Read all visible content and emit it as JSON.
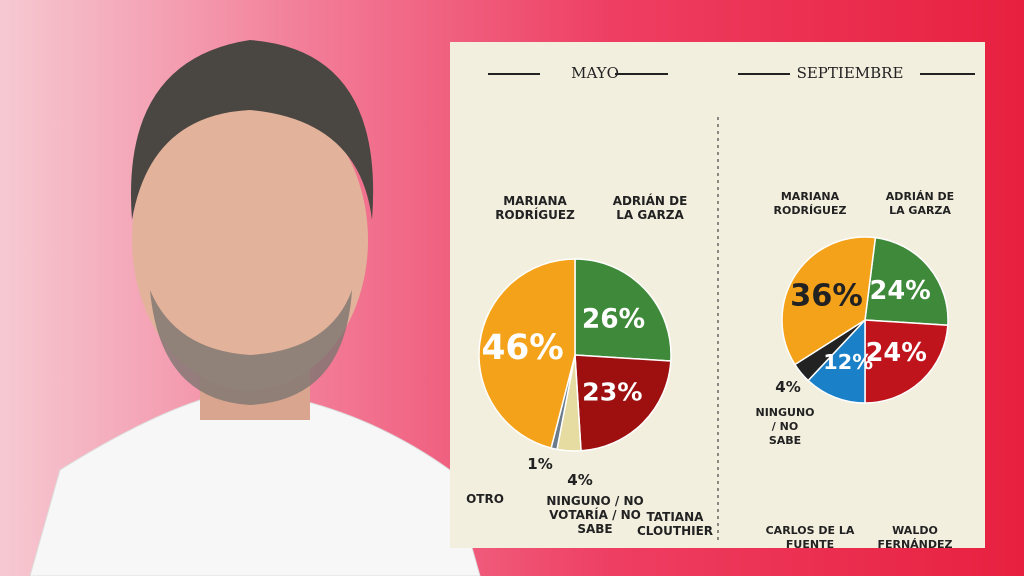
{
  "chart_data": [
    {
      "type": "pie",
      "title": "MAYO",
      "categories": [
        "ADRIÁN DE LA GARZA",
        "TATIANA CLOUTHIER",
        "NINGUNO / NO VOTARÍA / NO SABE",
        "OTRO",
        "MARIANA RODRÍGUEZ"
      ],
      "values": [
        26,
        23,
        4,
        1,
        46
      ],
      "value_labels": [
        "26%",
        "23%",
        "4%",
        "1%",
        "46%"
      ],
      "colors": [
        "#3f8a3a",
        "#9e1010",
        "#e6dba0",
        "#6b7b8a",
        "#f5a21b"
      ]
    },
    {
      "type": "pie",
      "title": "SEPTIEMBRE",
      "categories": [
        "ADRIÁN DE LA GARZA",
        "WALDO FERNÁNDEZ",
        "CARLOS DE LA FUENTE",
        "NINGUNO / NO SABE",
        "MARIANA RODRÍGUEZ"
      ],
      "values": [
        24,
        24,
        12,
        4,
        36
      ],
      "value_labels": [
        "24%",
        "24%",
        "12%",
        "4%",
        "36%"
      ],
      "colors": [
        "#3f8a3a",
        "#c0141c",
        "#1a80c8",
        "#222222",
        "#f5a21b"
      ]
    }
  ]
}
